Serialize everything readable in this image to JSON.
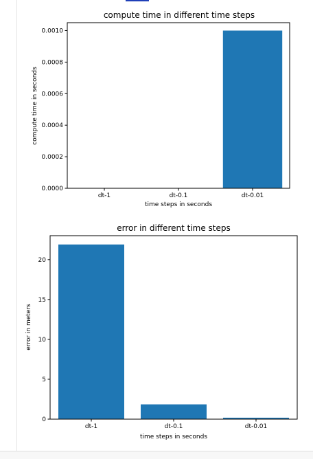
{
  "chart_data": [
    {
      "type": "bar",
      "title": "compute time in different time steps",
      "xlabel": "time steps in seconds",
      "ylabel": "compute time in seconds",
      "categories": [
        "dt-1",
        "dt-0.1",
        "dt-0.01"
      ],
      "values": [
        0.0,
        0.0,
        0.001
      ],
      "ylim": [
        0,
        0.00105
      ],
      "yticks": [
        "0.0000",
        "0.0002",
        "0.0004",
        "0.0006",
        "0.0008",
        "0.0010"
      ],
      "color": "#1f77b4",
      "grid": false
    },
    {
      "type": "bar",
      "title": "error in different time steps",
      "xlabel": "time steps in seconds",
      "ylabel": "error in meters",
      "categories": [
        "dt-1",
        "dt-0.1",
        "dt-0.01"
      ],
      "values": [
        21.9,
        1.85,
        0.18
      ],
      "ylim": [
        0,
        23.0
      ],
      "yticks": [
        "0",
        "5",
        "10",
        "15",
        "20"
      ],
      "color": "#1f77b4",
      "grid": false
    }
  ]
}
